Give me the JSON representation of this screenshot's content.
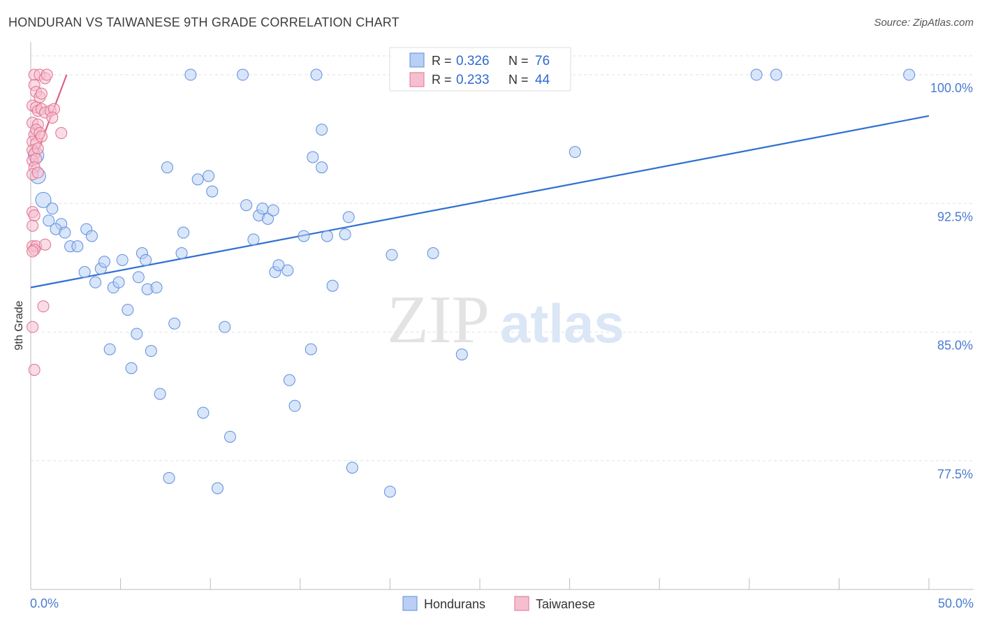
{
  "chart_data": {
    "type": "scatter",
    "title": "HONDURAN VS TAIWANESE 9TH GRADE CORRELATION CHART",
    "source": "Source: ZipAtlas.com",
    "xlabel": "",
    "ylabel": "9th Grade",
    "xlim": [
      0,
      50
    ],
    "ylim": [
      70.0,
      101.1
    ],
    "x_tick_labels": [
      "0.0%",
      "50.0%"
    ],
    "y_ticks": [
      77.5,
      85.0,
      92.5,
      100.0
    ],
    "y_tick_labels": [
      "77.5%",
      "85.0%",
      "92.5%",
      "100.0%"
    ],
    "watermark": {
      "zip": "ZIP",
      "atlas": "atlas"
    },
    "legend_stats": [
      {
        "series": "Hondurans",
        "r_label": "R =",
        "r_value": "0.326",
        "n_label": "N =",
        "n_value": "76"
      },
      {
        "series": "Taiwanese",
        "r_label": "R =",
        "r_value": "0.233",
        "n_label": "N =",
        "n_value": "44"
      }
    ],
    "series": [
      {
        "name": "Hondurans",
        "color": "#5b8fe0",
        "fill": "#b9cff3",
        "trendline": [
          [
            0.0,
            87.6
          ],
          [
            50.0,
            97.6
          ]
        ],
        "points": [
          [
            0.3,
            95.3
          ],
          [
            0.4,
            94.1
          ],
          [
            0.7,
            92.7
          ],
          [
            1.2,
            92.2
          ],
          [
            1.0,
            91.5
          ],
          [
            1.7,
            91.3
          ],
          [
            1.4,
            91.0
          ],
          [
            1.9,
            90.8
          ],
          [
            2.2,
            90.0
          ],
          [
            2.6,
            90.0
          ],
          [
            3.1,
            91.0
          ],
          [
            3.4,
            90.6
          ],
          [
            3.0,
            88.5
          ],
          [
            3.6,
            87.9
          ],
          [
            3.9,
            88.7
          ],
          [
            4.1,
            89.1
          ],
          [
            4.6,
            87.6
          ],
          [
            4.9,
            87.9
          ],
          [
            5.1,
            89.2
          ],
          [
            5.4,
            86.3
          ],
          [
            5.9,
            84.9
          ],
          [
            6.0,
            88.2
          ],
          [
            6.2,
            89.6
          ],
          [
            6.4,
            89.2
          ],
          [
            6.5,
            87.5
          ],
          [
            7.0,
            87.6
          ],
          [
            6.7,
            83.9
          ],
          [
            4.4,
            84.0
          ],
          [
            5.6,
            82.9
          ],
          [
            7.2,
            81.4
          ],
          [
            7.6,
            94.6
          ],
          [
            8.0,
            85.5
          ],
          [
            8.4,
            89.6
          ],
          [
            8.5,
            90.8
          ],
          [
            8.9,
            100.0
          ],
          [
            9.3,
            93.9
          ],
          [
            9.9,
            94.1
          ],
          [
            10.1,
            93.2
          ],
          [
            9.6,
            80.3
          ],
          [
            10.8,
            85.3
          ],
          [
            11.1,
            78.9
          ],
          [
            10.4,
            75.9
          ],
          [
            7.7,
            76.5
          ],
          [
            11.8,
            100.0
          ],
          [
            12.0,
            92.4
          ],
          [
            12.4,
            90.4
          ],
          [
            12.7,
            91.8
          ],
          [
            12.9,
            92.2
          ],
          [
            13.2,
            91.6
          ],
          [
            13.5,
            92.1
          ],
          [
            13.6,
            88.5
          ],
          [
            13.8,
            88.9
          ],
          [
            14.3,
            88.6
          ],
          [
            14.4,
            82.2
          ],
          [
            14.7,
            80.7
          ],
          [
            15.2,
            90.6
          ],
          [
            15.7,
            95.2
          ],
          [
            15.9,
            100.0
          ],
          [
            16.2,
            96.8
          ],
          [
            16.2,
            94.6
          ],
          [
            16.5,
            90.6
          ],
          [
            16.8,
            87.7
          ],
          [
            17.5,
            90.7
          ],
          [
            17.7,
            91.7
          ],
          [
            17.9,
            77.1
          ],
          [
            20.0,
            75.7
          ],
          [
            20.1,
            89.5
          ],
          [
            22.4,
            89.6
          ],
          [
            24.0,
            83.7
          ],
          [
            28.1,
            100.0
          ],
          [
            28.4,
            100.0
          ],
          [
            30.3,
            95.5
          ],
          [
            40.4,
            100.0
          ],
          [
            41.5,
            100.0
          ],
          [
            48.9,
            100.0
          ],
          [
            15.6,
            84.0
          ]
        ]
      },
      {
        "name": "Taiwanese",
        "color": "#e0708f",
        "fill": "#f6bfd0",
        "trendline": [
          [
            0.05,
            94.6
          ],
          [
            2.0,
            100.0
          ]
        ],
        "points": [
          [
            0.2,
            100.0
          ],
          [
            0.5,
            100.0
          ],
          [
            0.8,
            99.8
          ],
          [
            0.9,
            100.0
          ],
          [
            0.2,
            99.4
          ],
          [
            0.3,
            99.0
          ],
          [
            0.5,
            98.7
          ],
          [
            0.6,
            98.9
          ],
          [
            0.1,
            98.2
          ],
          [
            0.3,
            98.1
          ],
          [
            0.4,
            97.9
          ],
          [
            0.6,
            98.0
          ],
          [
            0.8,
            97.8
          ],
          [
            1.1,
            97.9
          ],
          [
            1.3,
            98.0
          ],
          [
            1.2,
            97.5
          ],
          [
            0.1,
            97.2
          ],
          [
            0.4,
            97.1
          ],
          [
            0.2,
            96.5
          ],
          [
            0.3,
            96.8
          ],
          [
            0.5,
            96.6
          ],
          [
            0.1,
            96.1
          ],
          [
            0.3,
            96.0
          ],
          [
            0.6,
            96.4
          ],
          [
            1.7,
            96.6
          ],
          [
            0.1,
            95.6
          ],
          [
            0.2,
            95.4
          ],
          [
            0.4,
            95.7
          ],
          [
            0.1,
            95.0
          ],
          [
            0.3,
            95.1
          ],
          [
            0.2,
            94.6
          ],
          [
            0.1,
            94.2
          ],
          [
            0.4,
            94.3
          ],
          [
            0.1,
            92.0
          ],
          [
            0.2,
            91.8
          ],
          [
            0.1,
            91.2
          ],
          [
            0.1,
            90.0
          ],
          [
            0.3,
            90.0
          ],
          [
            0.2,
            89.8
          ],
          [
            0.8,
            90.1
          ],
          [
            0.1,
            89.7
          ],
          [
            0.7,
            86.5
          ],
          [
            0.1,
            85.3
          ],
          [
            0.2,
            82.8
          ]
        ]
      }
    ]
  }
}
